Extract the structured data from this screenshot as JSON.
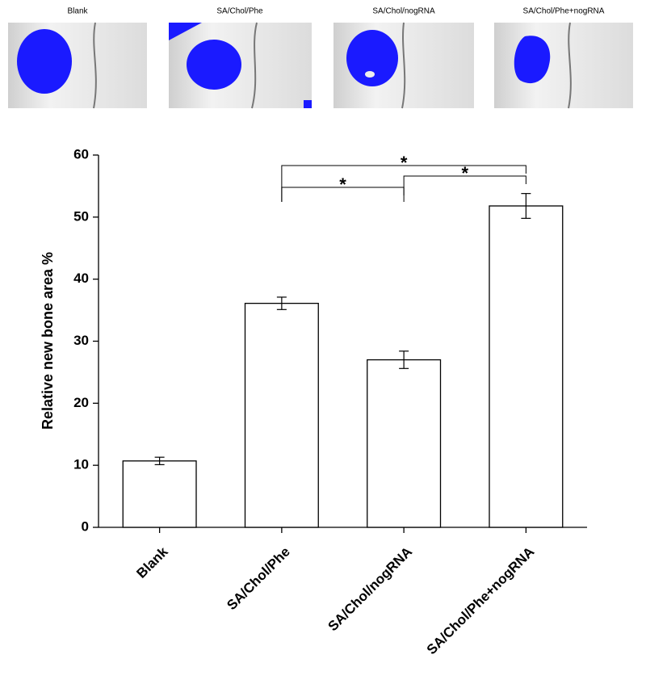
{
  "panels": [
    {
      "label": "Blank"
    },
    {
      "label": "SA/Chol/Phe"
    },
    {
      "label": "SA/Chol/nogRNA"
    },
    {
      "label": "SA/Chol/Phe+nogRNA"
    }
  ],
  "chart_data": {
    "type": "bar",
    "y_label": "Relative new bone area %",
    "categories": [
      "Blank",
      "SA/Chol/Phe",
      "SA/Chol/nogRNA",
      "SA/Chol/Phe+nogRNA"
    ],
    "values": [
      10.7,
      36.1,
      27.0,
      51.8
    ],
    "errors": [
      0.6,
      1.0,
      1.4,
      2.0
    ],
    "color": "#ffffff",
    "ylim": [
      0,
      60
    ],
    "yticks": [
      0,
      10,
      20,
      30,
      40,
      50,
      60
    ],
    "grid": false,
    "significance": [
      {
        "groups": [
          "SA/Chol/Phe",
          "SA/Chol/nogRNA"
        ],
        "label": "*"
      },
      {
        "groups": [
          "SA/Chol/nogRNA",
          "SA/Chol/Phe+nogRNA"
        ],
        "label": "*"
      },
      {
        "groups": [
          "SA/Chol/Phe",
          "SA/Chol/Phe+nogRNA"
        ],
        "label": "*"
      }
    ]
  }
}
